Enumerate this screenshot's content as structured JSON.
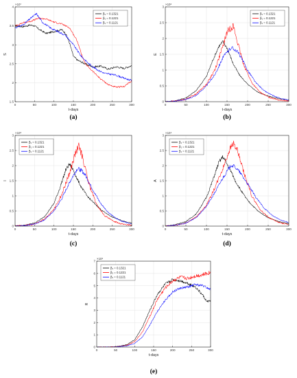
{
  "colors": {
    "series1": "#000000",
    "series2": "#ff0000",
    "series3": "#0000ff",
    "grid": "#e4e4e4"
  },
  "chart_data": [
    {
      "id": "a",
      "type": "line",
      "caption": "(a)",
      "xlabel": "t-days",
      "ylabel": "S",
      "exponent": "×10⁷",
      "xlim": [
        0,
        300
      ],
      "ylim": [
        1.5,
        4
      ],
      "xticks": [
        0,
        50,
        100,
        150,
        200,
        250,
        300
      ],
      "yticks": [
        1.5,
        2,
        2.5,
        3,
        3.5,
        4
      ],
      "grid": true,
      "legend_position": "top-right",
      "series": [
        {
          "name": "β₁ = 0.1321",
          "color": "#000000",
          "noise": 0.025,
          "x": [
            0,
            20,
            40,
            50,
            60,
            80,
            100,
            120,
            130,
            140,
            150,
            160,
            180,
            200,
            220,
            240,
            260,
            280,
            300
          ],
          "values": [
            3.5,
            3.48,
            3.52,
            3.5,
            3.42,
            3.3,
            3.35,
            3.4,
            3.3,
            3.05,
            2.7,
            2.6,
            2.5,
            2.42,
            2.44,
            2.36,
            2.42,
            2.38,
            2.45
          ]
        },
        {
          "name": "β₁ = 0.1221",
          "color": "#ff0000",
          "noise": 0.02,
          "x": [
            0,
            20,
            40,
            60,
            80,
            100,
            120,
            140,
            160,
            170,
            180,
            200,
            220,
            240,
            260,
            280,
            300
          ],
          "values": [
            3.5,
            3.58,
            3.62,
            3.7,
            3.68,
            3.6,
            3.55,
            3.45,
            3.1,
            2.78,
            2.5,
            2.3,
            2.1,
            1.95,
            1.88,
            1.9,
            2.05
          ]
        },
        {
          "name": "β₁ = 0.1121",
          "color": "#0000ff",
          "noise": 0.025,
          "x": [
            0,
            20,
            40,
            55,
            70,
            90,
            110,
            130,
            150,
            170,
            190,
            210,
            230,
            260,
            280,
            300
          ],
          "values": [
            3.45,
            3.52,
            3.7,
            3.82,
            3.6,
            3.45,
            3.35,
            3.25,
            3.0,
            2.7,
            2.5,
            2.35,
            2.25,
            2.2,
            2.12,
            2.06
          ]
        }
      ]
    },
    {
      "id": "b",
      "type": "line",
      "caption": "(b)",
      "xlabel": "t-days",
      "ylabel": "E",
      "exponent": "×10⁶",
      "xlim": [
        0,
        300
      ],
      "ylim": [
        0,
        3
      ],
      "xticks": [
        0,
        50,
        100,
        150,
        200,
        250,
        300
      ],
      "yticks": [
        0,
        0.5,
        1,
        1.5,
        2,
        2.5,
        3
      ],
      "grid": true,
      "legend_position": "top-right",
      "series": [
        {
          "name": "β₁ = 0.1321",
          "color": "#000000",
          "noise": 0.05,
          "x": [
            0,
            25,
            50,
            75,
            100,
            115,
            130,
            140,
            150,
            165,
            180,
            200,
            225,
            250,
            275,
            300
          ],
          "values": [
            0,
            0.03,
            0.12,
            0.35,
            0.8,
            1.3,
            1.75,
            1.9,
            1.7,
            1.2,
            0.85,
            0.55,
            0.3,
            0.18,
            0.1,
            0.05
          ]
        },
        {
          "name": "β₁ = 0.1221",
          "color": "#ff0000",
          "noise": 0.09,
          "x": [
            0,
            25,
            50,
            75,
            100,
            120,
            140,
            150,
            160,
            165,
            175,
            190,
            210,
            230,
            250,
            275,
            300
          ],
          "values": [
            0,
            0.02,
            0.08,
            0.25,
            0.55,
            1.0,
            1.75,
            2.2,
            2.35,
            2.4,
            1.9,
            1.2,
            0.6,
            0.3,
            0.15,
            0.06,
            0.02
          ]
        },
        {
          "name": "β₁ = 0.1121",
          "color": "#0000ff",
          "noise": 0.07,
          "x": [
            0,
            25,
            50,
            75,
            100,
            120,
            140,
            160,
            170,
            180,
            200,
            220,
            240,
            260,
            280,
            300
          ],
          "values": [
            0,
            0.02,
            0.07,
            0.2,
            0.5,
            0.85,
            1.4,
            1.72,
            1.65,
            1.5,
            1.0,
            0.6,
            0.35,
            0.2,
            0.1,
            0.05
          ]
        }
      ]
    },
    {
      "id": "c",
      "type": "line",
      "caption": "(c)",
      "xlabel": "t-days",
      "ylabel": "I",
      "exponent": "×10⁵",
      "xlim": [
        0,
        300
      ],
      "ylim": [
        0,
        3
      ],
      "xticks": [
        0,
        50,
        100,
        150,
        200,
        250,
        300
      ],
      "yticks": [
        0,
        0.5,
        1,
        1.5,
        2,
        2.5,
        3
      ],
      "grid": true,
      "legend_position": "top-left",
      "series": [
        {
          "name": "β₁ = 0.1321",
          "color": "#000000",
          "noise": 0.06,
          "x": [
            0,
            25,
            50,
            75,
            100,
            115,
            130,
            140,
            150,
            160,
            170,
            185,
            200,
            225,
            250,
            275,
            300
          ],
          "values": [
            0,
            0.03,
            0.1,
            0.3,
            0.75,
            1.25,
            1.85,
            2.05,
            1.85,
            1.55,
            1.3,
            1.0,
            0.8,
            0.5,
            0.3,
            0.18,
            0.1
          ]
        },
        {
          "name": "β₁ = 0.1221",
          "color": "#ff0000",
          "noise": 0.1,
          "x": [
            0,
            25,
            50,
            75,
            100,
            120,
            140,
            155,
            165,
            175,
            190,
            210,
            230,
            250,
            275,
            300
          ],
          "values": [
            0,
            0.02,
            0.07,
            0.22,
            0.55,
            1.05,
            1.75,
            2.4,
            2.65,
            2.2,
            1.4,
            0.7,
            0.35,
            0.18,
            0.07,
            0.03
          ]
        },
        {
          "name": "β₁ = 0.1121",
          "color": "#0000ff",
          "noise": 0.07,
          "x": [
            0,
            25,
            50,
            75,
            100,
            120,
            140,
            160,
            170,
            180,
            200,
            220,
            240,
            260,
            280,
            300
          ],
          "values": [
            0,
            0.02,
            0.07,
            0.2,
            0.5,
            0.9,
            1.45,
            1.9,
            1.85,
            1.7,
            1.2,
            0.75,
            0.45,
            0.25,
            0.14,
            0.08
          ]
        }
      ]
    },
    {
      "id": "d",
      "type": "line",
      "caption": "(d)",
      "xlabel": "t-days",
      "ylabel": "A",
      "exponent": "×10⁴",
      "xlim": [
        0,
        300
      ],
      "ylim": [
        0,
        3
      ],
      "xticks": [
        0,
        50,
        100,
        150,
        200,
        250,
        300
      ],
      "yticks": [
        0,
        0.5,
        1,
        1.5,
        2,
        2.5,
        3
      ],
      "grid": true,
      "legend_position": "top-left",
      "series": [
        {
          "name": "β₁ = 0.1321",
          "color": "#000000",
          "noise": 0.06,
          "x": [
            0,
            25,
            50,
            75,
            100,
            115,
            130,
            140,
            150,
            160,
            170,
            185,
            200,
            225,
            250,
            275,
            300
          ],
          "values": [
            0,
            0.05,
            0.15,
            0.4,
            0.95,
            1.5,
            2.1,
            2.3,
            2.05,
            1.8,
            1.5,
            1.15,
            0.85,
            0.5,
            0.28,
            0.15,
            0.08
          ]
        },
        {
          "name": "β₁ = 0.1221",
          "color": "#ff0000",
          "noise": 0.08,
          "x": [
            0,
            25,
            50,
            75,
            100,
            120,
            140,
            155,
            165,
            175,
            190,
            210,
            230,
            250,
            275,
            300
          ],
          "values": [
            0,
            0.03,
            0.1,
            0.3,
            0.7,
            1.25,
            1.9,
            2.5,
            2.75,
            2.5,
            1.8,
            1.0,
            0.55,
            0.3,
            0.12,
            0.05
          ]
        },
        {
          "name": "β₁ = 0.1121",
          "color": "#0000ff",
          "noise": 0.06,
          "x": [
            0,
            25,
            50,
            75,
            100,
            120,
            140,
            160,
            170,
            180,
            200,
            220,
            240,
            260,
            280,
            300
          ],
          "values": [
            0,
            0.03,
            0.1,
            0.28,
            0.65,
            1.1,
            1.6,
            2.02,
            1.95,
            1.8,
            1.4,
            0.95,
            0.6,
            0.35,
            0.2,
            0.12
          ]
        }
      ]
    },
    {
      "id": "e",
      "type": "line",
      "caption": "(e)",
      "xlabel": "t-days",
      "ylabel": "R",
      "exponent": "×10⁶",
      "xlim": [
        0,
        300
      ],
      "ylim": [
        0,
        7
      ],
      "xticks": [
        0,
        50,
        100,
        150,
        200,
        250,
        300
      ],
      "yticks": [
        0,
        1,
        2,
        3,
        4,
        5,
        6,
        7
      ],
      "grid": true,
      "legend_position": "top-left",
      "series": [
        {
          "name": "β₁ = 0.1321",
          "color": "#000000",
          "noise": 0.1,
          "x": [
            0,
            50,
            80,
            100,
            120,
            140,
            160,
            180,
            200,
            220,
            240,
            260,
            280,
            290,
            300
          ],
          "values": [
            0,
            0.02,
            0.2,
            0.6,
            1.6,
            3.0,
            4.3,
            5.1,
            5.5,
            5.4,
            5.2,
            4.9,
            4.2,
            3.7,
            3.8
          ]
        },
        {
          "name": "β₁ = 0.1221",
          "color": "#ff0000",
          "noise": 0.12,
          "x": [
            0,
            50,
            80,
            100,
            120,
            140,
            160,
            180,
            200,
            220,
            240,
            260,
            280,
            300
          ],
          "values": [
            0,
            0.02,
            0.15,
            0.45,
            1.2,
            2.5,
            3.9,
            4.8,
            5.4,
            5.7,
            5.6,
            5.8,
            5.9,
            6.1
          ]
        },
        {
          "name": "β₁ = 0.1121",
          "color": "#0000ff",
          "noise": 0.09,
          "x": [
            0,
            50,
            80,
            100,
            120,
            140,
            160,
            180,
            200,
            220,
            240,
            260,
            280,
            300
          ],
          "values": [
            0,
            0.01,
            0.1,
            0.3,
            0.8,
            1.8,
            2.9,
            3.8,
            4.5,
            4.8,
            4.9,
            5.1,
            5.0,
            4.7
          ]
        }
      ]
    }
  ]
}
